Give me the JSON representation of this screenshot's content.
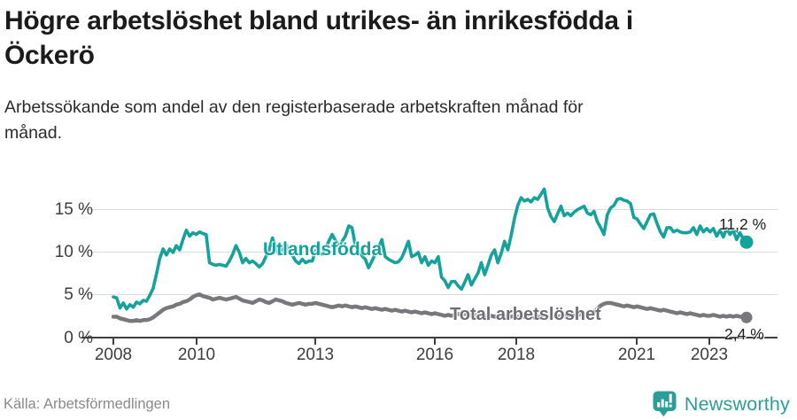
{
  "header": {
    "title": "Högre arbetslöshet bland utrikes- än inrikesfödda i Öckerö",
    "title_lines": [
      "Högre arbetslöshet bland utrikes- än inrikesfödda i",
      "Öckerö"
    ],
    "subtitle": "Arbetssökande som andel av den registerbaserade arbetskraften månad för månad.",
    "subtitle_lines": [
      "Arbetssökande som andel av den registerbaserade arbetskraften månad för",
      "månad."
    ]
  },
  "chart_data": {
    "type": "line",
    "unit": "percent",
    "frequency": "monthly",
    "x_start": "2008-01",
    "x_end": "2023-12",
    "ylim": [
      0,
      17.5
    ],
    "grid": "horizontal",
    "legend_position": "inline-labels",
    "y_axis": {
      "labels_top_to_bottom": [
        "15 %",
        "10 %",
        "5 %",
        "0 %"
      ],
      "values_top_to_bottom": [
        15,
        10,
        5,
        0
      ]
    },
    "x_axis": {
      "labels": [
        "2008",
        "2010",
        "2013",
        "2016",
        "2018",
        "2021",
        "2023"
      ]
    },
    "series": [
      {
        "name": "Utlandsfödda",
        "color": "#15a29b",
        "end_label": "11,2 %",
        "end_value": 11.2,
        "values": [
          4.8,
          4.7,
          3.5,
          4.1,
          3.4,
          3.9,
          3.6,
          4.2,
          4.0,
          4.4,
          4.3,
          5.0,
          5.8,
          7.5,
          9.3,
          10.4,
          9.7,
          10.4,
          10.0,
          10.8,
          10.3,
          11.5,
          12.6,
          11.9,
          12.3,
          12.1,
          12.4,
          12.2,
          12.1,
          8.8,
          8.6,
          8.5,
          8.6,
          8.5,
          8.4,
          9.0,
          9.8,
          10.8,
          10.0,
          8.8,
          9.3,
          8.8,
          9.0,
          8.7,
          8.3,
          8.7,
          9.5,
          10.3,
          11.7,
          10.5,
          9.8,
          10.5,
          11.0,
          10.3,
          9.7,
          9.0,
          8.7,
          9.2,
          8.8,
          9.0,
          9.0,
          10.2,
          10.0,
          9.8,
          10.5,
          11.3,
          12.1,
          11.4,
          10.8,
          11.3,
          11.9,
          13.1,
          12.9,
          10.8,
          10.2,
          9.6,
          9.2,
          8.2,
          9.0,
          9.8,
          10.6,
          11.5,
          9.5,
          9.2,
          9.0,
          8.8,
          8.9,
          9.4,
          10.3,
          11.3,
          9.5,
          9.7,
          10.0,
          8.8,
          9.5,
          8.5,
          9.0,
          8.8,
          9.5,
          7.1,
          6.7,
          5.9,
          6.6,
          6.6,
          6.1,
          5.7,
          6.5,
          7.4,
          6.2,
          6.9,
          7.6,
          8.8,
          7.4,
          8.5,
          9.7,
          10.3,
          8.8,
          9.9,
          11.3,
          10.3,
          12.0,
          14.0,
          15.5,
          16.4,
          16.0,
          16.2,
          15.9,
          16.4,
          16.2,
          16.8,
          17.4,
          15.2,
          14.2,
          13.6,
          14.5,
          15.4,
          14.3,
          14.6,
          14.3,
          14.7,
          15.0,
          15.2,
          15.4,
          14.6,
          14.4,
          14.8,
          13.6,
          12.9,
          12.1,
          14.4,
          15.2,
          15.5,
          16.2,
          16.3,
          16.1,
          16.0,
          15.7,
          14.1,
          13.9,
          13.3,
          12.8,
          13.6,
          14.4,
          14.5,
          13.4,
          12.4,
          11.8,
          12.9,
          12.9,
          12.4,
          12.6,
          12.4,
          12.3,
          12.3,
          12.4,
          12.9,
          12.1,
          13.1,
          12.4,
          12.8,
          12.4,
          12.8,
          11.9,
          12.6,
          11.8,
          12.8,
          12.1,
          12.6,
          11.5,
          12.3,
          11.6,
          11.2
        ]
      },
      {
        "name": "Total arbetslöshet",
        "color": "#77777c",
        "end_label": "2,4 %",
        "end_value": 2.4,
        "values": [
          2.5,
          2.5,
          2.3,
          2.2,
          2.1,
          2.0,
          2.0,
          2.1,
          2.0,
          2.1,
          2.1,
          2.2,
          2.4,
          2.7,
          3.0,
          3.3,
          3.5,
          3.6,
          3.7,
          3.9,
          4.0,
          4.2,
          4.3,
          4.5,
          4.8,
          5.0,
          5.1,
          4.9,
          4.8,
          4.7,
          4.5,
          4.6,
          4.7,
          4.6,
          4.5,
          4.6,
          4.7,
          4.8,
          4.6,
          4.4,
          4.3,
          4.2,
          4.1,
          4.3,
          4.5,
          4.4,
          4.2,
          4.1,
          4.3,
          4.5,
          4.4,
          4.3,
          4.1,
          4.0,
          3.9,
          4.0,
          4.1,
          4.0,
          3.9,
          4.0,
          4.0,
          4.1,
          4.0,
          3.9,
          3.8,
          3.7,
          3.6,
          3.7,
          3.8,
          3.7,
          3.8,
          3.7,
          3.6,
          3.7,
          3.6,
          3.5,
          3.6,
          3.5,
          3.4,
          3.5,
          3.4,
          3.3,
          3.4,
          3.3,
          3.2,
          3.3,
          3.2,
          3.1,
          3.2,
          3.1,
          3.0,
          3.1,
          3.0,
          2.9,
          3.0,
          2.9,
          2.8,
          2.9,
          2.8,
          2.7,
          2.6,
          2.7,
          2.6,
          2.7,
          2.8,
          2.9,
          2.8,
          2.7,
          2.6,
          2.7,
          2.6,
          2.5,
          2.6,
          2.5,
          2.6,
          2.5,
          2.6,
          2.5,
          2.6,
          2.5,
          2.5,
          2.6,
          2.5,
          2.4,
          2.5,
          2.4,
          2.5,
          2.4,
          2.5,
          2.4,
          2.5,
          2.4,
          2.5,
          2.6,
          2.5,
          2.6,
          2.5,
          2.6,
          2.7,
          2.6,
          2.7,
          2.8,
          2.7,
          2.8,
          2.9,
          3.0,
          3.4,
          3.8,
          4.0,
          4.1,
          4.1,
          4.0,
          3.9,
          3.8,
          3.7,
          3.8,
          3.7,
          3.6,
          3.7,
          3.6,
          3.5,
          3.4,
          3.5,
          3.4,
          3.3,
          3.2,
          3.3,
          3.2,
          3.1,
          3.0,
          2.9,
          3.0,
          2.9,
          2.8,
          2.9,
          2.8,
          2.7,
          2.6,
          2.7,
          2.6,
          2.6,
          2.7,
          2.6,
          2.5,
          2.6,
          2.5,
          2.6,
          2.5,
          2.6,
          2.5,
          2.5,
          2.4
        ]
      }
    ]
  },
  "footer": {
    "source": "Källa: Arbetsförmedlingen",
    "brand": "Newsworthy"
  }
}
